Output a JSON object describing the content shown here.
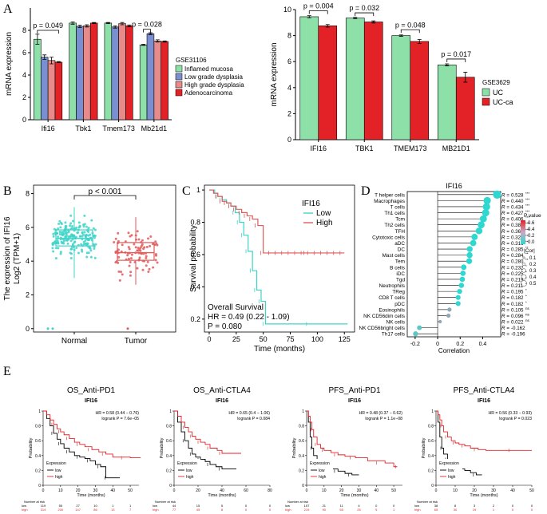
{
  "panel_labels": [
    "A",
    "B",
    "C",
    "D",
    "E"
  ],
  "chart_data": [
    {
      "id": "A1",
      "type": "bar",
      "ylabel": "mRNA expression",
      "ylim": [
        0,
        10
      ],
      "yticks": [
        0,
        2,
        4,
        6,
        8
      ],
      "categories": [
        "Ifi16",
        "Tbk1",
        "Tmem173",
        "Mb21d1"
      ],
      "legend_title": "GSE31106",
      "series": [
        {
          "name": "Inflamed mucosa",
          "color": "#8de0a8",
          "values": [
            7.2,
            8.65,
            8.65,
            6.7
          ],
          "errors": [
            0.45,
            0.1,
            0.05,
            0.05
          ]
        },
        {
          "name": "Low grade dysplasia",
          "color": "#7a8fcf",
          "values": [
            5.6,
            8.35,
            8.3,
            7.7
          ],
          "errors": [
            0.2,
            0.1,
            0.1,
            0.08
          ]
        },
        {
          "name": "High grade dysplasia",
          "color": "#e98a8a",
          "values": [
            5.3,
            8.4,
            8.6,
            7.05
          ],
          "errors": [
            0.3,
            0.1,
            0.1,
            0.1
          ]
        },
        {
          "name": "Adenocarcinoma",
          "color": "#e32227",
          "values": [
            5.15,
            8.65,
            8.4,
            7.0
          ],
          "errors": [
            0.05,
            0.05,
            0.08,
            0.05
          ]
        }
      ],
      "annotations": [
        {
          "cat_from": 0,
          "s_from": 0,
          "cat_to": 0,
          "s_to": 3,
          "y": 8.0,
          "text": "p = 0.049"
        },
        {
          "cat_from": 3,
          "s_from": 0,
          "cat_to": 3,
          "s_to": 1,
          "y": 8.1,
          "text": "p = 0.028"
        }
      ]
    },
    {
      "id": "A2",
      "type": "bar",
      "ylabel": "mRNA expression",
      "ylim": [
        0,
        10
      ],
      "yticks": [
        0,
        2,
        4,
        6,
        8,
        10
      ],
      "categories": [
        "IFI16",
        "TBK1",
        "TMEM173",
        "MB21D1"
      ],
      "legend_title": "GSE3629",
      "series": [
        {
          "name": "UC",
          "color": "#8de0a8",
          "values": [
            9.45,
            9.35,
            8.0,
            5.75
          ],
          "errors": [
            0.08,
            0.05,
            0.05,
            0.08
          ]
        },
        {
          "name": "UC-ca",
          "color": "#e32227",
          "values": [
            8.75,
            9.05,
            7.55,
            4.8
          ],
          "errors": [
            0.1,
            0.08,
            0.15,
            0.38
          ]
        }
      ],
      "annotations": [
        {
          "cat": 0,
          "y": 9.9,
          "text": "p = 0.004"
        },
        {
          "cat": 1,
          "y": 9.75,
          "text": "p = 0.032"
        },
        {
          "cat": 2,
          "y": 8.45,
          "text": "p = 0.048"
        },
        {
          "cat": 3,
          "y": 6.2,
          "text": "p = 0.017"
        }
      ]
    },
    {
      "id": "B",
      "type": "box",
      "ylabel_line1": "The expression of IFI16",
      "ylabel_line2": "Log2 (TPM+1)",
      "ylim": [
        -0.2,
        8.5
      ],
      "yticks": [
        0,
        2,
        4,
        6,
        8
      ],
      "categories": [
        "Normal",
        "Tumor"
      ],
      "colors": [
        "#3fd4c8",
        "#e05a5a"
      ],
      "boxes": [
        {
          "min": 3.0,
          "q1": 4.9,
          "median": 5.35,
          "q3": 5.85,
          "max": 7.2
        },
        {
          "min": 2.6,
          "q1": 4.05,
          "median": 4.5,
          "q3": 5.1,
          "max": 6.6
        }
      ],
      "annotation": "p < 0.001"
    },
    {
      "id": "C",
      "type": "line",
      "xlabel": "Time (months)",
      "ylabel": "Survival probability",
      "xlim": [
        0,
        130
      ],
      "ylim": [
        0.12,
        1.03
      ],
      "xticks": [
        0,
        25,
        50,
        75,
        100,
        125
      ],
      "yticks": [
        0.2,
        0.4,
        0.6,
        0.8,
        1.0
      ],
      "legend_title": "IFI16",
      "series": [
        {
          "name": "Low",
          "color": "#3fd4c8",
          "x": [
            0,
            5,
            8,
            12,
            16,
            20,
            24,
            28,
            32,
            36,
            40,
            44,
            48,
            52,
            128
          ],
          "y": [
            1.0,
            0.98,
            0.96,
            0.94,
            0.92,
            0.9,
            0.86,
            0.8,
            0.72,
            0.62,
            0.5,
            0.38,
            0.31,
            0.17,
            0.17
          ]
        },
        {
          "name": "High",
          "color": "#e05a5a",
          "x": [
            0,
            4,
            8,
            12,
            16,
            20,
            25,
            30,
            35,
            40,
            45,
            50,
            125
          ],
          "y": [
            1.0,
            0.98,
            0.96,
            0.93,
            0.92,
            0.9,
            0.88,
            0.86,
            0.84,
            0.82,
            0.78,
            0.61,
            0.61
          ]
        }
      ],
      "annotation_lines": [
        "Overall Survival",
        "HR = 0.49 (0.22 - 1.09)",
        "P = 0.080"
      ]
    },
    {
      "id": "D",
      "type": "scatter",
      "title": "IFI16",
      "xlabel": "Correlation",
      "xlim": [
        -0.27,
        0.56
      ],
      "xticks": [
        -0.2,
        0.0,
        0.2,
        0.4
      ],
      "categories": [
        "T helper cells",
        "Macrophages",
        "T cells",
        "Th1 cells",
        "Tcm",
        "Th2 cells",
        "TFH",
        "Cytotoxic cells",
        "aDC",
        "DC",
        "Mast cells",
        "Tem",
        "B cells",
        "iDC",
        "Tgd",
        "Neutrophils",
        "TReg",
        "CD8 T cells",
        "pDC",
        "Eosinophils",
        "NK CD56dim cells",
        "NK cells",
        "NK CD56bright cells",
        "Th17 cells"
      ],
      "values": [
        0.528,
        0.44,
        0.434,
        0.427,
        0.406,
        0.387,
        0.368,
        0.328,
        0.316,
        0.285,
        0.284,
        0.28,
        0.232,
        0.225,
        0.219,
        0.211,
        0.195,
        0.182,
        0.182,
        0.105,
        0.096,
        0.022,
        -0.162,
        -0.196
      ],
      "r_labels": [
        "0.528",
        "0.440",
        "0.434",
        "0.427",
        "0.406",
        "0.387",
        "0.368",
        "0.328",
        "0.316",
        "0.285",
        "0.284",
        "0.280",
        "0.232",
        "0.225",
        "0.219",
        "0.211",
        "0.195",
        "0.182",
        "0.182",
        "0.105",
        "0.096",
        "0.022",
        "-0.162",
        "-0.196"
      ],
      "stars": [
        "***",
        "***",
        "***",
        "***",
        "***",
        "***",
        "***",
        "**",
        "**",
        "**",
        "**",
        "**",
        "*",
        "*",
        "*",
        "*",
        "*",
        "*",
        "*",
        "ns",
        "ns",
        "ns",
        "",
        ""
      ],
      "legend_pvalue_title": "P value",
      "legend_pvalue_ticks": [
        "0.6",
        "0.4",
        "0.2",
        "0.0"
      ],
      "legend_cor_title": "|Cor|",
      "legend_cor_values": [
        "0.1",
        "0.2",
        "0.3",
        "0.4",
        "0.5"
      ]
    },
    {
      "id": "E1",
      "type": "line",
      "title": "OS_Anti-PD1",
      "subtitle": "IFI16",
      "xlabel": "Time (months)",
      "ylabel": "Probability",
      "xlim": [
        0,
        55
      ],
      "ylim": [
        0,
        1.0
      ],
      "xticks": [
        0,
        10,
        20,
        30,
        40,
        50
      ],
      "yticks": [
        0.0,
        0.2,
        0.4,
        0.6,
        0.8,
        1.0
      ],
      "hr_text": "HR = 0.58 (0.44 − 0.76)",
      "logrank_text": "logrank P = 7.6e−05",
      "legend_title": "Expression",
      "legend_low": "low",
      "legend_high": "high",
      "risk_header": "Number at risk",
      "risk_low": [
        "119",
        "55",
        "27",
        "10",
        "1",
        "1"
      ],
      "risk_high": [
        "314",
        "200",
        "147",
        "86",
        "13",
        "7"
      ],
      "series": [
        {
          "name": "low",
          "color": "#000000",
          "x": [
            0,
            2,
            4,
            6,
            8,
            10,
            12,
            15,
            18,
            21,
            24,
            27,
            30,
            33,
            35,
            36,
            44
          ],
          "y": [
            1.0,
            0.9,
            0.8,
            0.7,
            0.62,
            0.56,
            0.5,
            0.45,
            0.4,
            0.38,
            0.36,
            0.33,
            0.28,
            0.25,
            0.25,
            0.1,
            0.1
          ]
        },
        {
          "name": "high",
          "color": "#e32227",
          "x": [
            0,
            2,
            4,
            6,
            8,
            10,
            12,
            15,
            18,
            21,
            24,
            28,
            32,
            36,
            40,
            50,
            56
          ],
          "y": [
            1.0,
            0.95,
            0.88,
            0.82,
            0.76,
            0.72,
            0.68,
            0.63,
            0.58,
            0.55,
            0.52,
            0.48,
            0.45,
            0.42,
            0.38,
            0.37,
            0.37
          ]
        }
      ]
    },
    {
      "id": "E2",
      "type": "line",
      "title": "OS_Anti-CTLA4",
      "subtitle": "IFI16",
      "xlabel": "Time (months)",
      "ylabel": "Probability",
      "xlim": [
        0,
        80
      ],
      "ylim": [
        0,
        1.0
      ],
      "xticks": [
        0,
        20,
        40,
        60,
        80
      ],
      "yticks": [
        0.0,
        0.2,
        0.4,
        0.6,
        0.8,
        1.0
      ],
      "hr_text": "HR = 0.65 (0.4 − 1.06)",
      "logrank_text": "logrank P = 0.084",
      "legend_title": "Expression",
      "legend_low": "low",
      "legend_high": "high",
      "risk_header": "Number at risk",
      "risk_low": [
        "44",
        "15",
        "5",
        "0",
        "0"
      ],
      "risk_high": [
        "77",
        "45",
        "8",
        "0",
        "0"
      ],
      "series": [
        {
          "name": "low",
          "color": "#000000",
          "x": [
            0,
            3,
            6,
            9,
            12,
            15,
            18,
            22,
            26,
            30,
            35,
            40,
            52
          ],
          "y": [
            1.0,
            0.85,
            0.72,
            0.6,
            0.5,
            0.42,
            0.38,
            0.35,
            0.32,
            0.28,
            0.25,
            0.22,
            0.22
          ]
        },
        {
          "name": "high",
          "color": "#e32227",
          "x": [
            0,
            3,
            6,
            9,
            12,
            15,
            18,
            22,
            26,
            30,
            36,
            40,
            56
          ],
          "y": [
            1.0,
            0.93,
            0.85,
            0.78,
            0.72,
            0.66,
            0.62,
            0.58,
            0.55,
            0.5,
            0.47,
            0.43,
            0.43
          ]
        }
      ]
    },
    {
      "id": "E3",
      "type": "line",
      "title": "PFS_Anti-PD1",
      "subtitle": "IFI16",
      "xlabel": "Time (months)",
      "ylabel": "Probability",
      "xlim": [
        0,
        55
      ],
      "ylim": [
        0,
        1.0
      ],
      "xticks": [
        0,
        10,
        20,
        30,
        40,
        50
      ],
      "yticks": [
        0.0,
        0.2,
        0.4,
        0.6,
        0.8,
        1.0
      ],
      "hr_text": "HR = 0.48 (0.37 − 0.62)",
      "logrank_text": "logrank P = 1.1e−08",
      "legend_title": "Expression",
      "legend_low": "low",
      "legend_high": "high",
      "risk_header": "Number at risk",
      "risk_low": [
        "107",
        "21",
        "11",
        "4",
        "0",
        "0"
      ],
      "risk_high": [
        "219",
        "90",
        "55",
        "25",
        "5",
        "1"
      ],
      "series": [
        {
          "name": "low",
          "color": "#000000",
          "x": [
            0,
            1,
            2,
            3,
            4,
            6,
            8,
            10,
            14,
            18,
            22,
            26,
            30
          ],
          "y": [
            1.0,
            0.85,
            0.65,
            0.5,
            0.4,
            0.32,
            0.28,
            0.25,
            0.22,
            0.19,
            0.16,
            0.14,
            0.14
          ]
        },
        {
          "name": "high",
          "color": "#e32227",
          "x": [
            0,
            1,
            2,
            3,
            4,
            6,
            8,
            10,
            14,
            18,
            22,
            28,
            35,
            45,
            50,
            52
          ],
          "y": [
            1.0,
            0.93,
            0.85,
            0.75,
            0.65,
            0.55,
            0.5,
            0.47,
            0.44,
            0.41,
            0.39,
            0.37,
            0.33,
            0.3,
            0.25,
            0.25
          ]
        }
      ]
    },
    {
      "id": "E4",
      "type": "line",
      "title": "PFS_Anti-CTLA4",
      "subtitle": "IFI16",
      "xlabel": "Time (months)",
      "ylabel": "Probability",
      "xlim": [
        0,
        50
      ],
      "ylim": [
        0,
        1.0
      ],
      "xticks": [
        0,
        10,
        20,
        30,
        40,
        50
      ],
      "yticks": [
        0.0,
        0.2,
        0.4,
        0.6,
        0.8,
        1.0
      ],
      "hr_text": "HR = 0.56 (0.33 − 0.93)",
      "logrank_text": "logrank P = 0.023",
      "legend_title": "Expression",
      "legend_low": "low",
      "legend_high": "high",
      "risk_header": "Number at risk",
      "risk_low": [
        "38",
        "8",
        "3",
        "2",
        "0",
        "0"
      ],
      "risk_high": [
        "65",
        "30",
        "19",
        "1",
        "0",
        "0"
      ],
      "series": [
        {
          "name": "low",
          "color": "#000000",
          "x": [
            0,
            1,
            2,
            3,
            4,
            6,
            8,
            10,
            12,
            15,
            18,
            21,
            24
          ],
          "y": [
            1.0,
            0.85,
            0.65,
            0.5,
            0.42,
            0.35,
            0.3,
            0.26,
            0.22,
            0.2,
            0.17,
            0.14,
            0.14
          ]
        },
        {
          "name": "high",
          "color": "#e32227",
          "x": [
            0,
            1,
            2,
            3,
            4,
            6,
            8,
            10,
            12,
            15,
            18,
            22,
            26,
            50
          ],
          "y": [
            1.0,
            0.95,
            0.88,
            0.8,
            0.72,
            0.65,
            0.6,
            0.57,
            0.55,
            0.53,
            0.5,
            0.48,
            0.47,
            0.47
          ]
        }
      ]
    }
  ]
}
